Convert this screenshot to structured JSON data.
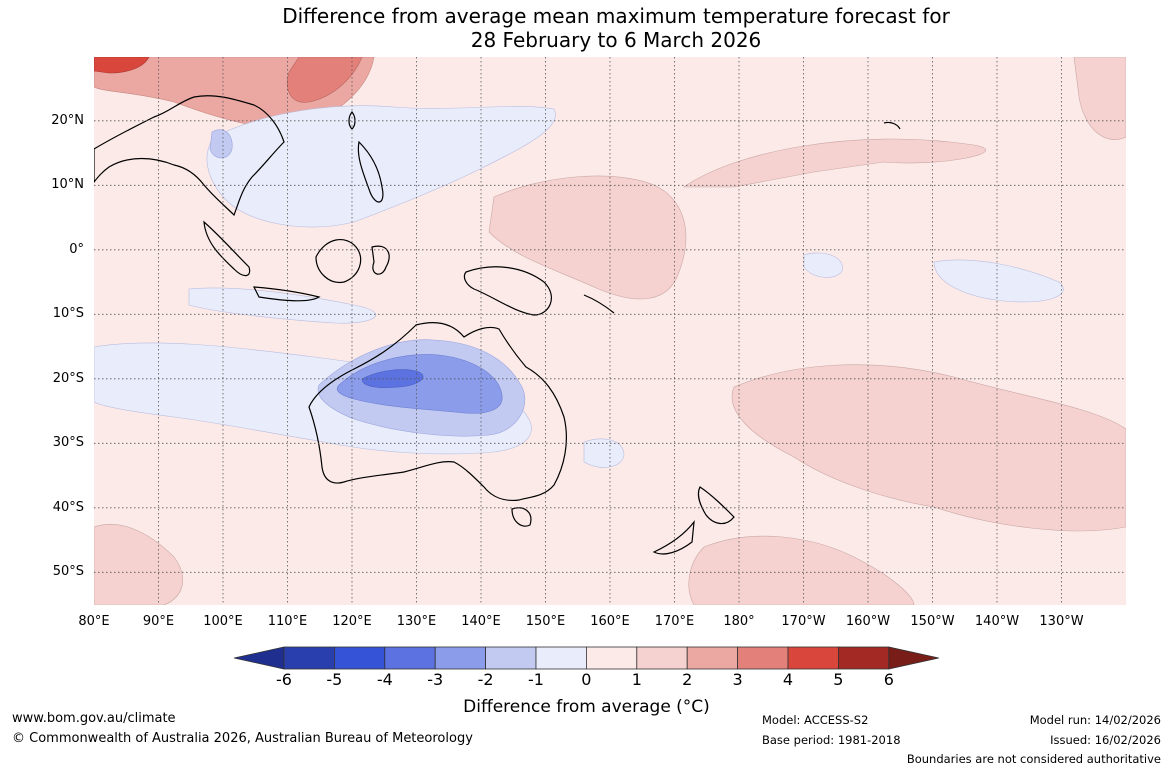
{
  "title": {
    "line1": "Difference from average mean maximum temperature forecast for",
    "line2": "28 February to 6 March 2026"
  },
  "map": {
    "lat_labels": [
      "20°N",
      "10°N",
      "0°",
      "10°S",
      "20°S",
      "30°S",
      "40°S",
      "50°S"
    ],
    "lon_labels": [
      "80°E",
      "90°E",
      "100°E",
      "110°E",
      "120°E",
      "130°E",
      "140°E",
      "150°E",
      "160°E",
      "170°E",
      "180°",
      "170°W",
      "160°W",
      "150°W",
      "140°W",
      "130°W"
    ],
    "lat_range": [
      -55,
      30
    ],
    "lon_range": [
      80,
      240
    ],
    "anomaly_summary": "Mostly 0 to 1 °C warmer; 1 to 2 °C areas across the central Pacific and Tasman; 2 to 4 °C over eastern China; cooler than average (-1 to -3 °C) over north-western and central Australia"
  },
  "legend": {
    "ticks": [
      "-6",
      "-5",
      "-4",
      "-3",
      "-2",
      "-1",
      "0",
      "1",
      "2",
      "3",
      "4",
      "5",
      "6"
    ],
    "colors": [
      "#1f2f8f",
      "#2a3fae",
      "#3553d6",
      "#5b72e0",
      "#8a9cea",
      "#c2caf2",
      "#e9ecfa",
      "#fbeae8",
      "#f5d2d0",
      "#eba7a2",
      "#e28079",
      "#d9463b",
      "#a32a24",
      "#781d18"
    ],
    "title": "Difference from average (°C)"
  },
  "footer": {
    "website": "www.bom.gov.au/climate",
    "copyright": "© Commonwealth of Australia 2026, Australian Bureau of Meteorology",
    "model": "Model: ACCESS-S2",
    "base_period": "Base period: 1981-2018",
    "model_run": "Model run: 14/02/2026",
    "issued": "Issued: 16/02/2026",
    "disclaimer": "Boundaries are not considered authoritative"
  }
}
